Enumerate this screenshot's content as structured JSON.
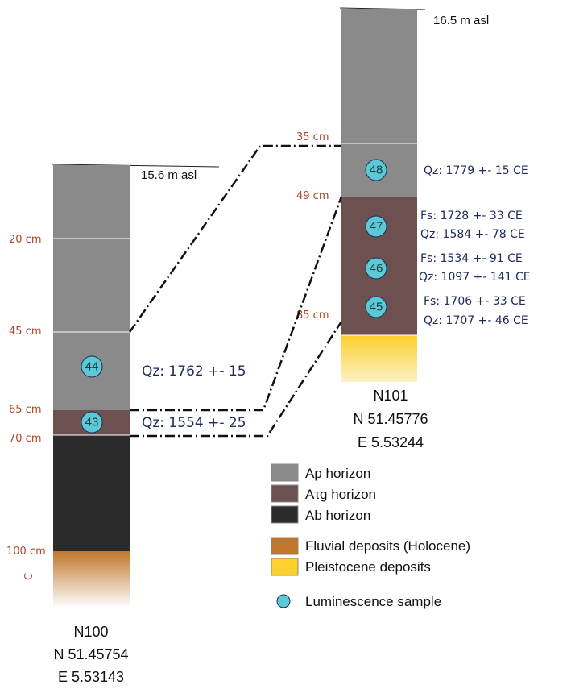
{
  "colors": {
    "ap": "#8a8a8a",
    "atg": "#6d5150",
    "ab": "#2b2b2b",
    "fluvial": "#c0772c",
    "pleistocene": "#fdd02c",
    "sample": "#5cc9d6",
    "depth_label": "#b0472a",
    "date_label": "#1f2a5a"
  },
  "profile_n100": {
    "id": "N100",
    "lat": "N 51.45754",
    "lon": "E 5.53143",
    "elevation": "15.6 m asl",
    "depths": [
      "20 cm",
      "45 cm",
      "65 cm",
      "70 cm",
      "100 cm"
    ],
    "c_label": "C",
    "samples": [
      {
        "number": "44",
        "date": "Qz: 1762 +- 15"
      },
      {
        "number": "43",
        "date": "Qz: 1554 +- 25"
      }
    ]
  },
  "profile_n101": {
    "id": "N101",
    "lat": "N 51.45776",
    "lon": "E 5.53244",
    "elevation": "16.5 m asl",
    "depths": [
      "35 cm",
      "49 cm",
      "85 cm"
    ],
    "samples": [
      {
        "number": "48",
        "dates": [
          "Qz: 1779 +- 15 CE"
        ]
      },
      {
        "number": "47",
        "dates": [
          "Fs: 1728 +- 33 CE",
          "Qz: 1584 +- 78 CE"
        ]
      },
      {
        "number": "46",
        "dates": [
          "Fs: 1534 +- 91 CE",
          "Qz: 1097 +- 141 CE"
        ]
      },
      {
        "number": "45",
        "dates": [
          "Fs: 1706 +- 33 CE",
          "Qz: 1707 +- 46 CE"
        ]
      }
    ]
  },
  "legend": {
    "items": [
      {
        "label": "Ap horizon",
        "color": "#8a8a8a"
      },
      {
        "label": "Aτg horizon",
        "color": "#6d5150"
      },
      {
        "label": "Ab horizon",
        "color": "#2b2b2b"
      },
      {
        "label": "Fluvial deposits (Holocene)",
        "color": "#c0772c"
      },
      {
        "label": "Pleistocene deposits",
        "color": "#fdd02c"
      }
    ],
    "sample_label": "Luminescence sample"
  }
}
